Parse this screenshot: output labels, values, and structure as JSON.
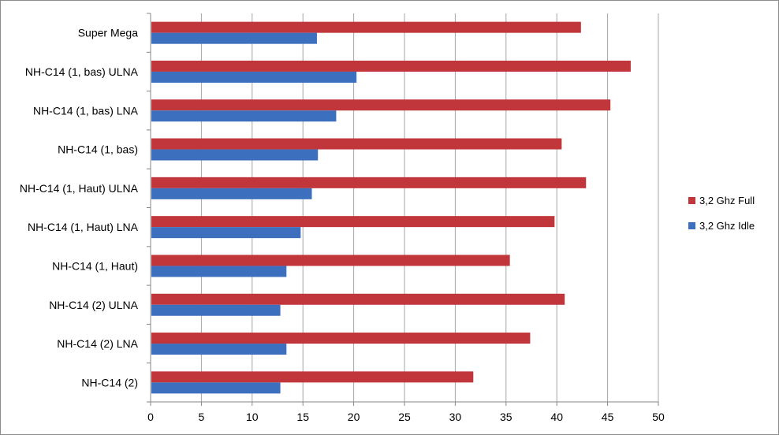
{
  "chart_data": {
    "type": "bar",
    "orientation": "horizontal",
    "categories": [
      "NH-C14 (2)",
      "NH-C14 (2) LNA",
      "NH-C14 (2) ULNA",
      "NH-C14 (1, Haut)",
      "NH-C14 (1, Haut) LNA",
      "NH-C14 (1, Haut) ULNA",
      "NH-C14 (1, bas)",
      "NH-C14 (1, bas) LNA",
      "NH-C14 (1, bas) ULNA",
      "Super Mega"
    ],
    "series": [
      {
        "name": "3,2 Ghz Idle",
        "color": "#3c6fbe",
        "values": [
          12.7,
          13.3,
          12.7,
          13.3,
          14.7,
          15.8,
          16.4,
          18.2,
          20.2,
          16.3
        ]
      },
      {
        "name": "3,2 Ghz Full",
        "color": "#c0363a",
        "values": [
          31.7,
          37.3,
          40.7,
          35.3,
          39.7,
          42.8,
          40.4,
          45.2,
          47.2,
          42.3
        ]
      }
    ],
    "xlim": [
      0,
      50
    ],
    "x_ticks": [
      "0",
      "5",
      "10",
      "15",
      "20",
      "25",
      "30",
      "35",
      "40",
      "45",
      "50"
    ],
    "grid": true,
    "legend_position": "right",
    "title": "",
    "xlabel": "",
    "ylabel": ""
  }
}
